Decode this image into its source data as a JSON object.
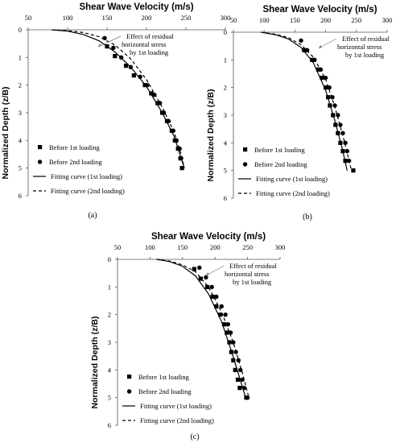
{
  "chart_data": [
    {
      "id": "a",
      "type": "scatter",
      "caption": "(a)",
      "xlabel": "Shear Wave Velocity (m/s)",
      "ylabel": "Normalized Depth (z/B)",
      "x_ticks": [
        "50",
        "100",
        "150",
        "200",
        "250",
        "300"
      ],
      "y_ticks": [
        "0",
        "1",
        "2",
        "3",
        "4",
        "5",
        "6"
      ],
      "xlim": [
        50,
        300
      ],
      "ylim": [
        0,
        6
      ],
      "y_inverted": true,
      "x_axis_position": "top",
      "grid": false,
      "legend_position": "bottom-left",
      "annotation": {
        "lines": [
          "Effect of residual",
          "horizontal stress",
          "by 1st loading"
        ]
      },
      "series": [
        {
          "name": "Before 1st loading",
          "kind": "square",
          "points": [
            [
              150,
              0.6
            ],
            [
              160,
              0.95
            ],
            [
              174,
              1.3
            ],
            [
              184,
              1.65
            ],
            [
              198,
              2.0
            ],
            [
              206,
              2.3
            ],
            [
              214,
              2.65
            ],
            [
              220,
              3.0
            ],
            [
              226,
              3.3
            ],
            [
              232,
              3.65
            ],
            [
              236,
              4.0
            ],
            [
              240,
              4.3
            ],
            [
              243,
              4.65
            ],
            [
              245,
              5.0
            ]
          ]
        },
        {
          "name": "Before 2nd loading",
          "kind": "circle",
          "points": [
            [
              147,
              0.3
            ],
            [
              158,
              0.65
            ],
            [
              168,
              1.0
            ],
            [
              180,
              1.35
            ],
            [
              192,
              1.7
            ],
            [
              201,
              2.0
            ],
            [
              210,
              2.35
            ],
            [
              217,
              2.65
            ],
            [
              222,
              3.0
            ],
            [
              228,
              3.3
            ],
            [
              234,
              3.65
            ],
            [
              238,
              4.0
            ],
            [
              242,
              4.3
            ],
            [
              244,
              4.65
            ]
          ]
        },
        {
          "name": "Fitting curve (1st loading)",
          "kind": "line",
          "dash": false,
          "points": [
            [
              80,
              0
            ],
            [
              100,
              0.05
            ],
            [
              120,
              0.17
            ],
            [
              140,
              0.4
            ],
            [
              160,
              0.8
            ],
            [
              180,
              1.35
            ],
            [
              200,
              2.05
            ],
            [
              220,
              3.0
            ],
            [
              235,
              3.85
            ],
            [
              248,
              5.0
            ]
          ]
        },
        {
          "name": "Fitting curve (2nd loading)",
          "kind": "line",
          "dash": true,
          "points": [
            [
              80,
              0
            ],
            [
              100,
              0.03
            ],
            [
              120,
              0.1
            ],
            [
              140,
              0.25
            ],
            [
              160,
              0.55
            ],
            [
              180,
              1.05
            ],
            [
              200,
              1.8
            ],
            [
              220,
              2.8
            ],
            [
              235,
              3.7
            ],
            [
              244,
              4.5
            ],
            [
              248,
              5.0
            ]
          ]
        }
      ]
    },
    {
      "id": "b",
      "type": "scatter",
      "caption": "(b)",
      "xlabel": "Shear Wave Velocity (m/s)",
      "ylabel": "Normalized Depth (z/B)",
      "x_ticks": [
        "50",
        "100",
        "150",
        "200",
        "250",
        "300"
      ],
      "y_ticks": [
        "0",
        "1",
        "2",
        "3",
        "4",
        "5",
        "6"
      ],
      "xlim": [
        50,
        300
      ],
      "ylim": [
        0,
        6
      ],
      "y_inverted": true,
      "x_axis_position": "top",
      "grid": false,
      "legend_position": "bottom-left",
      "annotation": {
        "lines": [
          "Effect of residual",
          "horizontal stress",
          "by 1st loading"
        ]
      },
      "series": [
        {
          "name": "Before 1st loading",
          "kind": "square",
          "points": [
            [
              165,
              0.65
            ],
            [
              178,
              1.0
            ],
            [
              188,
              1.35
            ],
            [
              194,
              1.65
            ],
            [
              200,
              2.0
            ],
            [
              204,
              2.35
            ],
            [
              207,
              2.65
            ],
            [
              212,
              3.0
            ],
            [
              216,
              3.35
            ],
            [
              220,
              3.65
            ],
            [
              224,
              4.0
            ],
            [
              228,
              4.3
            ],
            [
              232,
              4.65
            ],
            [
              245,
              5.0
            ]
          ]
        },
        {
          "name": "Before 2nd loading",
          "kind": "circle",
          "points": [
            [
              160,
              0.3
            ],
            [
              170,
              0.65
            ],
            [
              182,
              1.0
            ],
            [
              192,
              1.35
            ],
            [
              200,
              1.65
            ],
            [
              206,
              2.0
            ],
            [
              211,
              2.35
            ],
            [
              215,
              2.65
            ],
            [
              220,
              3.0
            ],
            [
              224,
              3.35
            ],
            [
              228,
              3.65
            ],
            [
              232,
              4.0
            ],
            [
              235,
              4.3
            ],
            [
              238,
              4.65
            ]
          ]
        },
        {
          "name": "Fitting curve (1st loading)",
          "kind": "line",
          "dash": false,
          "points": [
            [
              95,
              0
            ],
            [
              120,
              0.1
            ],
            [
              140,
              0.25
            ],
            [
              160,
              0.55
            ],
            [
              180,
              1.1
            ],
            [
              200,
              2.1
            ],
            [
              215,
              3.2
            ],
            [
              228,
              4.3
            ],
            [
              235,
              5.0
            ]
          ]
        },
        {
          "name": "Fitting curve (2nd loading)",
          "kind": "line",
          "dash": true,
          "points": [
            [
              95,
              0
            ],
            [
              120,
              0.08
            ],
            [
              140,
              0.2
            ],
            [
              160,
              0.45
            ],
            [
              180,
              0.9
            ],
            [
              200,
              1.7
            ],
            [
              215,
              2.7
            ],
            [
              230,
              3.9
            ],
            [
              242,
              5.0
            ]
          ]
        }
      ]
    },
    {
      "id": "c",
      "type": "scatter",
      "caption": "(c)",
      "xlabel": "Shear Wave Velocity (m/s)",
      "ylabel": "Normalized Depth (z/B)",
      "x_ticks": [
        "50",
        "100",
        "150",
        "200",
        "250",
        "300"
      ],
      "y_ticks": [
        "0",
        "1",
        "2",
        "3",
        "4",
        "5",
        "6"
      ],
      "xlim": [
        50,
        300
      ],
      "ylim": [
        0,
        6
      ],
      "y_inverted": true,
      "x_axis_position": "top",
      "grid": false,
      "legend_position": "bottom-left",
      "annotation": {
        "lines": [
          "Effect of residual",
          "horizontal stress",
          "by 1st loading"
        ]
      },
      "series": [
        {
          "name": "Before 1st loading",
          "kind": "square",
          "points": [
            [
              168,
              0.35
            ],
            [
              178,
              0.7
            ],
            [
              188,
              1.0
            ],
            [
              196,
              1.35
            ],
            [
              202,
              1.7
            ],
            [
              208,
              2.0
            ],
            [
              214,
              2.35
            ],
            [
              218,
              2.65
            ],
            [
              222,
              3.0
            ],
            [
              225,
              3.35
            ],
            [
              228,
              3.65
            ],
            [
              231,
              4.0
            ],
            [
              235,
              4.35
            ],
            [
              238,
              4.65
            ],
            [
              248,
              5.0
            ]
          ]
        },
        {
          "name": "Before 2nd loading",
          "kind": "circle",
          "points": [
            [
              176,
              0.3
            ],
            [
              186,
              0.65
            ],
            [
              195,
              1.0
            ],
            [
              202,
              1.35
            ],
            [
              210,
              1.7
            ],
            [
              216,
              2.0
            ],
            [
              220,
              2.35
            ],
            [
              224,
              2.65
            ],
            [
              228,
              3.0
            ],
            [
              232,
              3.35
            ],
            [
              236,
              3.65
            ],
            [
              239,
              4.0
            ],
            [
              242,
              4.35
            ],
            [
              245,
              4.65
            ],
            [
              250,
              5.0
            ]
          ]
        },
        {
          "name": "Fitting curve (1st loading)",
          "kind": "line",
          "dash": false,
          "points": [
            [
              110,
              0
            ],
            [
              130,
              0.08
            ],
            [
              150,
              0.25
            ],
            [
              170,
              0.6
            ],
            [
              190,
              1.25
            ],
            [
              210,
              2.25
            ],
            [
              225,
              3.3
            ],
            [
              238,
              4.3
            ],
            [
              247,
              5.0
            ]
          ]
        },
        {
          "name": "Fitting curve (2nd loading)",
          "kind": "line",
          "dash": true,
          "points": [
            [
              110,
              0
            ],
            [
              130,
              0.06
            ],
            [
              150,
              0.2
            ],
            [
              170,
              0.45
            ],
            [
              190,
              1.0
            ],
            [
              210,
              1.9
            ],
            [
              228,
              3.0
            ],
            [
              242,
              4.1
            ],
            [
              252,
              5.0
            ]
          ]
        }
      ]
    }
  ]
}
